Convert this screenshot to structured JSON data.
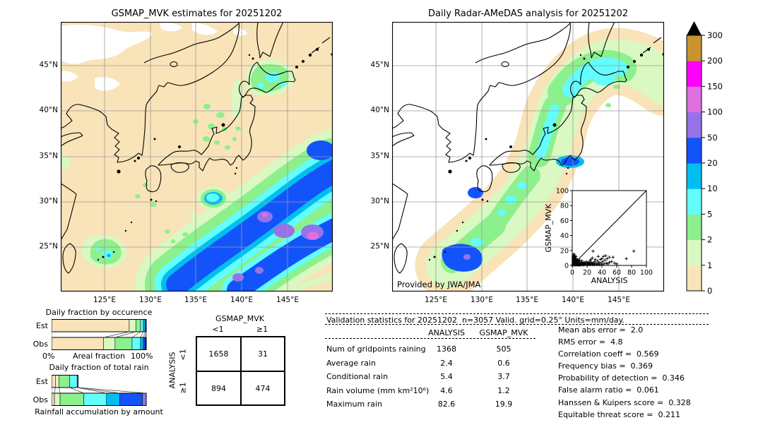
{
  "chart_data": [
    {
      "type": "bar",
      "id": "occurrence",
      "title": "Daily fraction by occurence",
      "row_labels": [
        "Est",
        "Obs"
      ],
      "xlabel_left": "0%",
      "xlabel_center": "Areal fraction",
      "xlabel_right": "100%",
      "categories_mm_per_day": [
        "0-1",
        "1-2",
        "2-5",
        "5-10",
        "10-20",
        "20-50",
        "50-100"
      ],
      "est_percents": [
        82,
        7,
        5,
        3,
        2,
        1
      ],
      "obs_percents": [
        55,
        12,
        18,
        9,
        3,
        2,
        1
      ],
      "est_colors": [
        "#f9e3b8",
        "#d9f8c2",
        "#8cf08c",
        "#63fdfd",
        "#00bff0",
        "#1353fa"
      ],
      "obs_colors": [
        "#f9e3b8",
        "#d9f8c2",
        "#8cf08c",
        "#63fdfd",
        "#00bff0",
        "#1353fa",
        "#0826c8"
      ]
    },
    {
      "type": "bar",
      "id": "totalrain",
      "title": "Daily fraction of total rain",
      "xlabel": "Rainfall accumulation by amount",
      "row_labels": [
        "Est",
        "Obs"
      ],
      "categories_mm_per_day": [
        "0-1",
        "1-2",
        "2-5",
        "5-10",
        "10-20",
        "20-50",
        "50-100"
      ],
      "est_percents": [
        4,
        4,
        11,
        8,
        1
      ],
      "obs_percents": [
        3,
        6,
        25,
        24,
        14,
        24,
        4
      ],
      "est_colors": [
        "#f9e3b8",
        "#d9f8c2",
        "#8cf08c",
        "#63fdfd",
        "#00bff0"
      ],
      "obs_colors": [
        "#f9e3b8",
        "#d9f8c2",
        "#8cf08c",
        "#63fdfd",
        "#00bff0",
        "#1353fa",
        "#9673e8"
      ]
    },
    {
      "type": "scatter",
      "id": "inset-scatter",
      "xlabel": "ANALYSIS",
      "ylabel": "GSMAP_MVK",
      "xlim": [
        0,
        100
      ],
      "ylim": [
        0,
        100
      ],
      "xticks": [
        0,
        20,
        40,
        60,
        80,
        100
      ],
      "yticks": [
        0,
        20,
        40,
        60,
        80,
        100
      ],
      "diagonal_line": true,
      "points": [
        [
          0.5,
          0.5
        ],
        [
          1,
          2
        ],
        [
          1,
          5
        ],
        [
          1,
          8
        ],
        [
          1,
          11
        ],
        [
          1.5,
          14
        ],
        [
          2,
          1
        ],
        [
          2,
          3
        ],
        [
          2,
          6
        ],
        [
          2,
          9
        ],
        [
          2,
          12
        ],
        [
          2.5,
          15
        ],
        [
          3,
          0.5
        ],
        [
          3,
          2
        ],
        [
          3,
          4
        ],
        [
          3,
          7
        ],
        [
          3,
          10
        ],
        [
          3,
          13
        ],
        [
          4,
          1
        ],
        [
          4,
          3
        ],
        [
          4,
          5
        ],
        [
          4,
          8
        ],
        [
          4,
          11
        ],
        [
          5,
          0.5
        ],
        [
          5,
          2
        ],
        [
          5,
          4
        ],
        [
          5,
          6
        ],
        [
          5,
          9
        ],
        [
          5,
          12
        ],
        [
          6,
          1
        ],
        [
          6,
          3
        ],
        [
          6,
          5
        ],
        [
          6,
          7
        ],
        [
          7,
          0.5
        ],
        [
          7,
          2
        ],
        [
          7,
          4
        ],
        [
          7,
          8
        ],
        [
          8,
          1
        ],
        [
          8,
          3
        ],
        [
          8,
          6
        ],
        [
          9,
          0.5
        ],
        [
          9,
          2
        ],
        [
          9,
          5
        ],
        [
          10,
          1
        ],
        [
          10,
          3
        ],
        [
          10,
          7
        ],
        [
          11,
          0.5
        ],
        [
          11,
          2
        ],
        [
          12,
          1
        ],
        [
          12,
          4
        ],
        [
          13,
          2
        ],
        [
          13,
          6
        ],
        [
          14,
          1
        ],
        [
          14,
          3
        ],
        [
          15,
          0.5
        ],
        [
          15,
          2
        ],
        [
          16,
          4
        ],
        [
          17,
          1
        ],
        [
          17,
          3
        ],
        [
          18,
          2
        ],
        [
          19,
          5
        ],
        [
          20,
          1
        ],
        [
          20,
          3
        ],
        [
          21,
          2
        ],
        [
          22,
          4
        ],
        [
          22,
          1
        ],
        [
          23,
          3
        ],
        [
          24,
          1
        ],
        [
          24,
          6
        ],
        [
          25,
          2
        ],
        [
          25,
          8
        ],
        [
          26,
          4
        ],
        [
          27,
          1
        ],
        [
          27,
          10
        ],
        [
          28,
          19
        ],
        [
          28,
          3
        ],
        [
          29,
          2
        ],
        [
          30,
          5
        ],
        [
          30,
          1
        ],
        [
          31,
          8
        ],
        [
          32,
          3
        ],
        [
          33,
          1
        ],
        [
          34,
          6
        ],
        [
          35,
          2
        ],
        [
          35,
          12
        ],
        [
          36,
          4
        ],
        [
          37,
          1
        ],
        [
          38,
          8
        ],
        [
          39,
          3
        ],
        [
          40,
          1
        ],
        [
          40,
          9
        ],
        [
          41,
          5
        ],
        [
          42,
          12
        ],
        [
          43,
          2
        ],
        [
          44,
          7
        ],
        [
          45,
          13
        ],
        [
          46,
          3
        ],
        [
          47,
          9
        ],
        [
          48,
          2
        ],
        [
          50,
          4
        ],
        [
          50,
          11
        ],
        [
          53,
          5
        ],
        [
          55,
          11
        ],
        [
          57,
          3
        ],
        [
          60,
          2
        ],
        [
          73,
          9
        ],
        [
          83,
          19
        ]
      ]
    },
    {
      "type": "table",
      "id": "contingency",
      "col_title": "GSMAP_MVK",
      "row_title": "ANALYSIS",
      "col_labels": [
        "<1",
        "≥1"
      ],
      "row_labels": [
        "<1",
        "≥1"
      ],
      "values": [
        [
          "1658",
          "31"
        ],
        [
          "894",
          "474"
        ]
      ]
    },
    {
      "type": "table",
      "id": "validation",
      "title": "Validation statistics for 20251202  n=3057 Valid. grid=0.25° Units=mm/day.",
      "col_headers": [
        "ANALYSIS",
        "GSMAP_MVK"
      ],
      "rows": [
        {
          "label": "Num of gridpoints raining",
          "analysis": "1368",
          "gsmap": "505"
        },
        {
          "label": "Average rain",
          "analysis": "2.4",
          "gsmap": "0.6"
        },
        {
          "label": "Conditional rain",
          "analysis": "5.4",
          "gsmap": "3.7"
        },
        {
          "label": "Rain volume (mm km²10⁶)",
          "analysis": "4.6",
          "gsmap": "1.2"
        },
        {
          "label": "Maximum rain",
          "analysis": "82.6",
          "gsmap": "19.9"
        }
      ],
      "scores": [
        "Mean abs error =  2.0",
        "RMS error =  4.8",
        "Correlation coeff =  0.569",
        "Frequency bias =  0.369",
        "Probability of detection =  0.346",
        "False alarm ratio =  0.061",
        "Hanssen & Kuipers score =  0.328",
        "Equitable threat score =  0.211"
      ]
    },
    {
      "type": "heatmap",
      "id": "map-left",
      "title": "GSMAP_MVK estimates for 20251202",
      "units": "mm/day",
      "lon_ticks": [
        "125°E",
        "130°E",
        "135°E",
        "140°E",
        "145°E"
      ],
      "lat_ticks": [
        "45°N",
        "40°N",
        "35°N",
        "30°N",
        "25°N"
      ],
      "description": "Satellite GSMaP_MVK daily rain over Japan region; heavy band southeast of Honshu with >50 mm/day core and 100-150 mm/day spots"
    },
    {
      "type": "heatmap",
      "id": "map-right",
      "title": "Daily Radar-AMeDAS analysis for 20251202",
      "credit": "Provided by JWA/JMA",
      "units": "mm/day",
      "lon_ticks": [
        "125°E",
        "130°E",
        "135°E",
        "140°E",
        "145°E"
      ],
      "lat_ticks": [
        "45°N",
        "40°N",
        "35°N",
        "30°N",
        "25°N"
      ],
      "description": "Radar-AMeDAS analyzed daily rain along Japanese archipelago; 5-20 mm/day cores over Hokkaido and 20-100 mm/day near Okinawa"
    },
    {
      "type": "colorbar",
      "id": "colorbar",
      "units": "mm/day",
      "levels_bottom_to_top": [
        "0",
        "1",
        "2",
        "5",
        "10",
        "20",
        "50",
        "100",
        "150",
        "200",
        "300"
      ],
      "colors_bottom_to_top": [
        "#f9e3b8",
        "#d9f8c2",
        "#8cf08c",
        "#63fdfd",
        "#00bff0",
        "#1353fa",
        "#9673e8",
        "#e06fe0",
        "#ff00ff",
        "#c8932e"
      ],
      "overflow_color": "#000000"
    }
  ]
}
